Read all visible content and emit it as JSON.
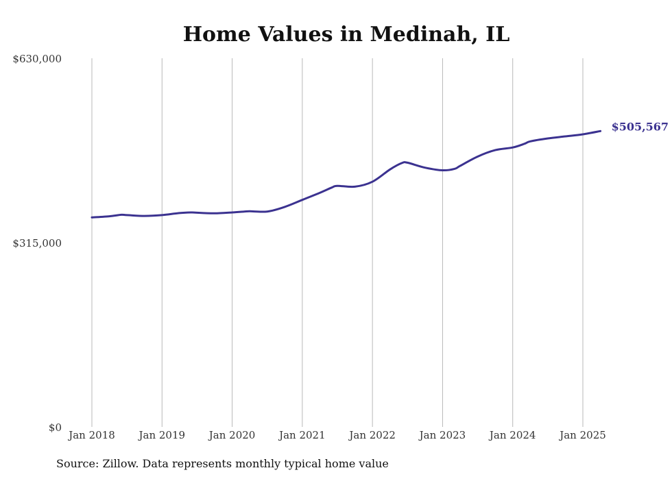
{
  "chart_data": {
    "type": "line",
    "title": "Home Values in Medinah, IL",
    "xlabel": "",
    "ylabel": "",
    "ylim": [
      0,
      630000
    ],
    "y_ticks": [
      0,
      315000,
      630000
    ],
    "y_tick_labels": [
      "$0",
      "$315,000",
      "$630,000"
    ],
    "x_ticks": [
      2018,
      2019,
      2020,
      2021,
      2022,
      2023,
      2024,
      2025
    ],
    "x_tick_labels": [
      "Jan 2018",
      "Jan 2019",
      "Jan 2020",
      "Jan 2021",
      "Jan 2022",
      "Jan 2023",
      "Jan 2024",
      "Jan 2025"
    ],
    "xlim": [
      2018,
      2025.25
    ],
    "grid": "vertical",
    "line_color": "#3b3290",
    "series": [
      {
        "x": [
          2018.0,
          2018.25,
          2018.42,
          2018.5,
          2018.75,
          2019.0,
          2019.25,
          2019.42,
          2019.5,
          2019.75,
          2020.0,
          2020.17,
          2020.25,
          2020.5,
          2020.75,
          2021.0,
          2021.25,
          2021.42,
          2021.5,
          2021.75,
          2022.0,
          2022.25,
          2022.42,
          2022.5,
          2022.75,
          2023.0,
          2023.17,
          2023.25,
          2023.5,
          2023.75,
          2024.0,
          2024.17,
          2024.25,
          2024.5,
          2024.75,
          2025.0,
          2025.25
        ],
        "values": [
          358000,
          360000,
          362500,
          362000,
          360500,
          362000,
          365500,
          366500,
          366000,
          365000,
          366500,
          368000,
          368500,
          368000,
          376000,
          388000,
          400000,
          409000,
          412000,
          410500,
          419000,
          440000,
          451000,
          451500,
          443000,
          438500,
          441000,
          446000,
          462000,
          473000,
          477500,
          484000,
          488000,
          493000,
          496500,
          500000,
          505567
        ]
      }
    ],
    "end_label": "$505,567",
    "source": "Source: Zillow. Data represents monthly typical home value"
  }
}
